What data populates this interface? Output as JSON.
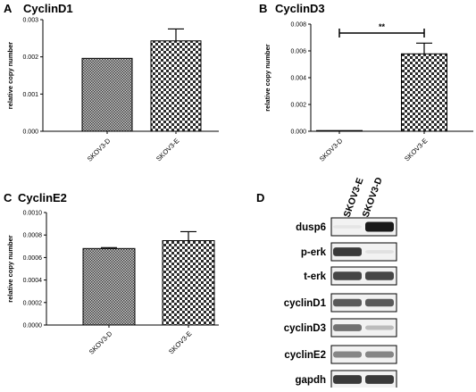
{
  "chart_data": [
    {
      "panel": "A",
      "type": "bar",
      "title": "CyclinD1",
      "ylabel": "relative copy number",
      "ylim": [
        0,
        0.003
      ],
      "yticks": [
        "0.000",
        "0.001",
        "0.002",
        "0.003"
      ],
      "categories": [
        "SKOV3-D",
        "SKOV3-E"
      ],
      "values": [
        0.00196,
        0.00243
      ],
      "errors": [
        0,
        0.00032
      ]
    },
    {
      "panel": "B",
      "type": "bar",
      "title": "CyclinD3",
      "ylabel": "relative copy number",
      "ylim": [
        0,
        0.008
      ],
      "yticks": [
        "0.000",
        "0.002",
        "0.004",
        "0.006",
        "0.008"
      ],
      "categories": [
        "SKOV3-D",
        "SKOV3-E"
      ],
      "values": [
        5e-05,
        0.00578
      ],
      "errors": [
        0,
        0.0008
      ],
      "significance": "**"
    },
    {
      "panel": "C",
      "type": "bar",
      "title": "CyclinE2",
      "ylabel": "relative copy number",
      "ylim": [
        0,
        0.001
      ],
      "yticks": [
        "0.0000",
        "0.0002",
        "0.0004",
        "0.0006",
        "0.0008",
        "0.0010"
      ],
      "categories": [
        "SKOV3-D",
        "SKOV3-E"
      ],
      "values": [
        0.00068,
        0.00075
      ],
      "errors": [
        8e-06,
        8e-05
      ]
    }
  ],
  "western_blot": {
    "panel": "D",
    "columns": [
      "SKOV3-E",
      "SKOV3-D"
    ],
    "rows": [
      {
        "label": "dusp6",
        "bands": [
          0.05,
          1.0
        ]
      },
      {
        "label": "p-erk",
        "bands": [
          0.85,
          0.08
        ]
      },
      {
        "label": "t-erk",
        "bands": [
          0.8,
          0.8
        ]
      },
      {
        "label": "cyclinD1",
        "bands": [
          0.7,
          0.7
        ]
      },
      {
        "label": "cyclinD3",
        "bands": [
          0.6,
          0.25
        ]
      },
      {
        "label": "cyclinE2",
        "bands": [
          0.5,
          0.5
        ]
      },
      {
        "label": "gapdh",
        "bands": [
          0.85,
          0.85
        ]
      }
    ]
  },
  "colors": {
    "axis": "#000000",
    "bar_fill_dark": "#555555",
    "bar_fill_light": "#ffffff",
    "band": "#1a1a1a"
  }
}
